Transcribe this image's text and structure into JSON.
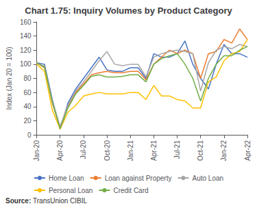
{
  "chart_data": {
    "type": "line",
    "title": "Chart 1.75: Inquiry Volumes by Product Category",
    "ylabel": "Index (Jan 20 = 100)",
    "annotations": [
      "Source:",
      "TransUnion CIBIL"
    ],
    "categories": [
      "Jan-20",
      null,
      null,
      "Apr-20",
      null,
      null,
      "Jul-20",
      null,
      null,
      "Oct-20",
      null,
      null,
      "Jan-21",
      null,
      null,
      "Apr-21",
      null,
      null,
      "Jul-21",
      null,
      null,
      "Oct-21",
      null,
      null,
      "Jan-22",
      null,
      null,
      "Apr-22"
    ],
    "ylim": [
      0,
      160
    ],
    "yticks": [
      0,
      20,
      40,
      60,
      80,
      100,
      120,
      140,
      160
    ],
    "grid": false,
    "legend": "bottom",
    "series": [
      {
        "name": "Home Loan",
        "color": "#4472c4",
        "values": [
          102,
          100,
          50,
          8,
          45,
          65,
          80,
          95,
          110,
          92,
          90,
          90,
          95,
          95,
          80,
          115,
          110,
          110,
          115,
          133,
          100,
          80,
          65,
          100,
          128,
          115,
          115,
          110
        ]
      },
      {
        "name": "Loan against Property",
        "color": "#ed7d31",
        "values": [
          102,
          95,
          45,
          10,
          40,
          60,
          72,
          85,
          88,
          90,
          88,
          88,
          90,
          90,
          78,
          100,
          110,
          120,
          115,
          120,
          115,
          80,
          115,
          118,
          135,
          130,
          150,
          135
        ]
      },
      {
        "name": "Auto Loan",
        "color": "#a6a6a6",
        "values": [
          102,
          97,
          48,
          12,
          42,
          62,
          75,
          90,
          105,
          118,
          100,
          98,
          100,
          100,
          82,
          110,
          115,
          118,
          120,
          118,
          115,
          62,
          102,
          120,
          125,
          122,
          128,
          125
        ]
      },
      {
        "name": "Personal Loan",
        "color": "#ffc000",
        "values": [
          100,
          90,
          35,
          8,
          32,
          42,
          55,
          58,
          60,
          58,
          58,
          58,
          60,
          60,
          50,
          70,
          55,
          55,
          50,
          48,
          38,
          38,
          75,
          82,
          105,
          115,
          118,
          135
        ]
      },
      {
        "name": "Credit Card",
        "color": "#70ad47",
        "values": [
          102,
          96,
          46,
          9,
          38,
          58,
          70,
          83,
          85,
          82,
          82,
          83,
          85,
          85,
          75,
          100,
          108,
          112,
          115,
          100,
          80,
          48,
          80,
          100,
          112,
          112,
          120,
          125
        ]
      }
    ]
  }
}
